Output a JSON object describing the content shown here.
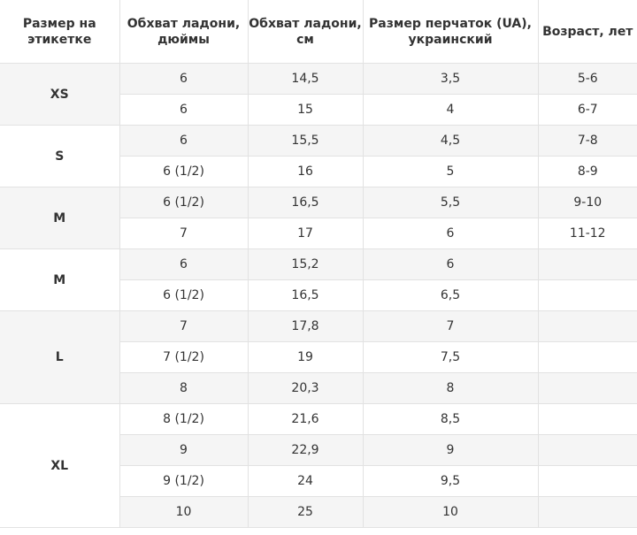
{
  "headers": [
    "Размер на этикетке",
    "Обхват ладони, дюймы",
    "Обхват ладони, см",
    "Размер перчаток (UA), украинский",
    "Возраст, лет"
  ],
  "groups": [
    {
      "label": "XS",
      "rows": [
        {
          "inch": "6",
          "cm": "14,5",
          "ua": "3,5",
          "age": "5-6"
        },
        {
          "inch": "6",
          "cm": "15",
          "ua": "4",
          "age": "6-7"
        }
      ]
    },
    {
      "label": "S",
      "rows": [
        {
          "inch": "6",
          "cm": "15,5",
          "ua": "4,5",
          "age": "7-8"
        },
        {
          "inch": "6 (1/2)",
          "cm": "16",
          "ua": "5",
          "age": "8-9"
        }
      ]
    },
    {
      "label": "M",
      "rows": [
        {
          "inch": "6 (1/2)",
          "cm": "16,5",
          "ua": "5,5",
          "age": "9-10"
        },
        {
          "inch": "7",
          "cm": "17",
          "ua": "6",
          "age": "11-12"
        }
      ]
    },
    {
      "label": "M",
      "rows": [
        {
          "inch": "6",
          "cm": "15,2",
          "ua": "6",
          "age": ""
        },
        {
          "inch": "6 (1/2)",
          "cm": "16,5",
          "ua": "6,5",
          "age": ""
        }
      ]
    },
    {
      "label": "L",
      "rows": [
        {
          "inch": "7",
          "cm": "17,8",
          "ua": "7",
          "age": ""
        },
        {
          "inch": "7 (1/2)",
          "cm": "19",
          "ua": "7,5",
          "age": ""
        },
        {
          "inch": "8",
          "cm": "20,3",
          "ua": "8",
          "age": ""
        }
      ]
    },
    {
      "label": "XL",
      "rows": [
        {
          "inch": "8 (1/2)",
          "cm": "21,6",
          "ua": "8,5",
          "age": ""
        },
        {
          "inch": "9",
          "cm": "22,9",
          "ua": "9",
          "age": ""
        },
        {
          "inch": "9 (1/2)",
          "cm": "24",
          "ua": "9,5",
          "age": ""
        },
        {
          "inch": "10",
          "cm": "25",
          "ua": "10",
          "age": ""
        }
      ]
    }
  ]
}
